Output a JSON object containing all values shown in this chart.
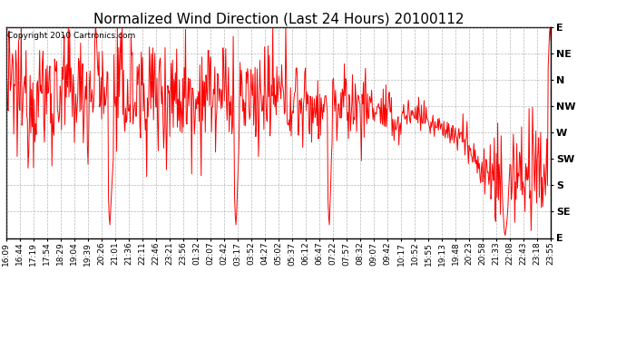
{
  "title": "Normalized Wind Direction (Last 24 Hours) 20100112",
  "copyright_text": "Copyright 2010 Cartronics.com",
  "y_labels_top_to_bottom": [
    "E",
    "NE",
    "N",
    "NW",
    "W",
    "SW",
    "S",
    "SE",
    "E"
  ],
  "x_labels": [
    "16:09",
    "16:44",
    "17:19",
    "17:54",
    "18:29",
    "19:04",
    "19:39",
    "20:26",
    "21:01",
    "21:36",
    "22:11",
    "22:46",
    "23:21",
    "23:56",
    "01:32",
    "02:07",
    "02:42",
    "03:17",
    "03:52",
    "04:27",
    "05:02",
    "05:37",
    "06:12",
    "06:47",
    "07:22",
    "07:57",
    "08:32",
    "09:07",
    "09:42",
    "10:17",
    "10:52",
    "15:55",
    "19:13",
    "19:48",
    "20:23",
    "20:58",
    "21:33",
    "22:08",
    "22:43",
    "23:18",
    "23:55"
  ],
  "line_color": "#ff0000",
  "background_color": "#ffffff",
  "grid_color": "#888888",
  "title_fontsize": 11,
  "copyright_fontsize": 6.5,
  "tick_label_fontsize": 6.5,
  "y_tick_fontsize": 8
}
